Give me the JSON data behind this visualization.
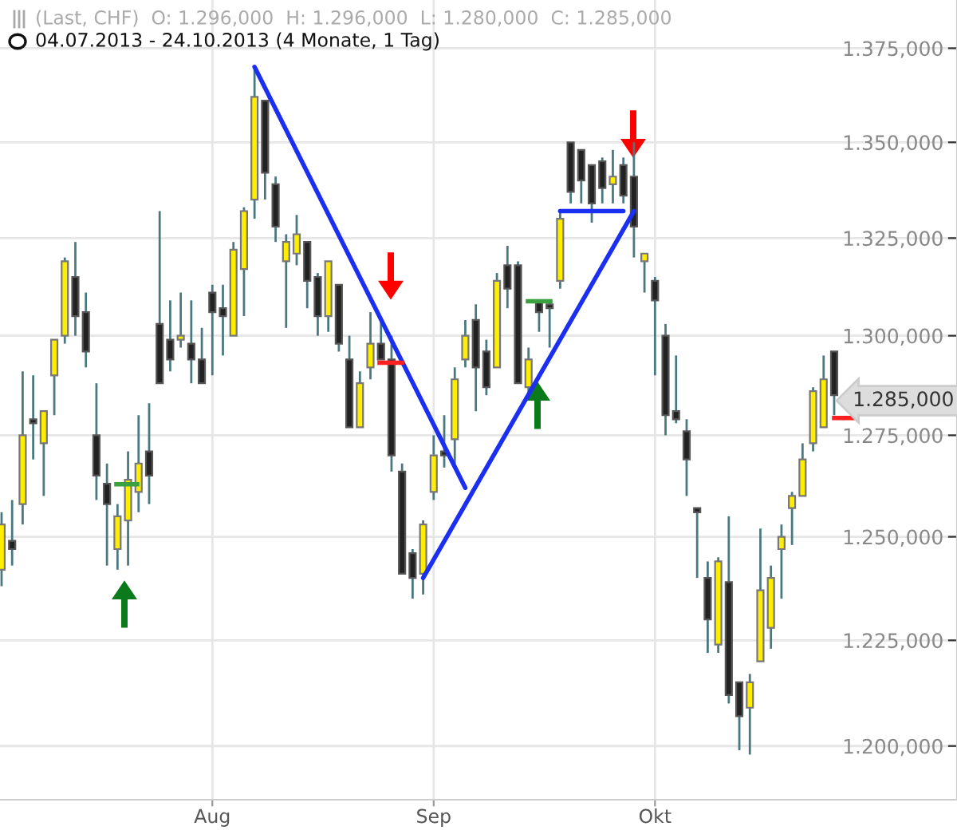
{
  "chart_data": {
    "type": "candlestick",
    "title": "(Last, CHF)  O: 1.296,000  H: 1.296,000  L: 1.280,000  C: 1.285,000",
    "subtitle": "04.07.2013 - 24.10.2013 (4 Monate, 1 Tag)",
    "categories": [
      null,
      null,
      null,
      null,
      null,
      null,
      null,
      null,
      null,
      null,
      null,
      null,
      null,
      null,
      null,
      null,
      null,
      null,
      null,
      null,
      "Aug",
      null,
      null,
      null,
      null,
      null,
      null,
      null,
      null,
      null,
      null,
      null,
      null,
      null,
      null,
      null,
      null,
      null,
      null,
      null,
      null,
      "Sep",
      null,
      null,
      null,
      null,
      null,
      null,
      null,
      null,
      null,
      null,
      null,
      null,
      null,
      null,
      null,
      null,
      null,
      null,
      null,
      null,
      "Okt",
      null,
      null,
      null,
      null,
      null,
      null,
      null,
      null,
      null,
      null,
      null,
      null,
      null,
      null,
      null,
      null,
      null
    ],
    "ohlc": [
      [
        1242,
        1256,
        1238,
        1253
      ],
      [
        1249,
        1259,
        1243,
        1247
      ],
      [
        1258,
        1291,
        1253,
        1275
      ],
      [
        1279,
        1290,
        1269,
        1278
      ],
      [
        1273,
        1281,
        1260,
        1281
      ],
      [
        1290,
        1299,
        1280,
        1299
      ],
      [
        1300,
        1320,
        1298,
        1319
      ],
      [
        1315,
        1324,
        1300,
        1305
      ],
      [
        1306,
        1311,
        1292,
        1296
      ],
      [
        1275,
        1288,
        1259,
        1265
      ],
      [
        1263,
        1268,
        1243,
        1258
      ],
      [
        1247,
        1258,
        1242,
        1255
      ],
      [
        1254,
        1271,
        1243,
        1264
      ],
      [
        1261,
        1280,
        1256,
        1268
      ],
      [
        1271,
        1283,
        1258,
        1265
      ],
      [
        1303,
        1332,
        1288,
        1288
      ],
      [
        1299,
        1309,
        1291,
        1294
      ],
      [
        1299,
        1311,
        1297,
        1300
      ],
      [
        1298,
        1309,
        1288,
        1294
      ],
      [
        1294,
        1302,
        1288,
        1288
      ],
      [
        1311,
        1313,
        1290,
        1306
      ],
      [
        1307,
        1313,
        1295,
        1305
      ],
      [
        1300,
        1324,
        1300,
        1322
      ],
      [
        1317,
        1333,
        1305,
        1332
      ],
      [
        1335,
        1370,
        1330,
        1362
      ],
      [
        1361,
        1361,
        1335,
        1342
      ],
      [
        1339,
        1341,
        1324,
        1328
      ],
      [
        1319,
        1326,
        1302,
        1324
      ],
      [
        1321,
        1331,
        1318,
        1326
      ],
      [
        1324,
        1324,
        1307,
        1314
      ],
      [
        1315,
        1316,
        1300,
        1305
      ],
      [
        1305,
        1319,
        1301,
        1319
      ],
      [
        1313,
        1313,
        1296,
        1298
      ],
      [
        1294,
        1300,
        1277,
        1277
      ],
      [
        1277,
        1291,
        1277,
        1288
      ],
      [
        1292,
        1306,
        1289,
        1298
      ],
      [
        1298,
        1304,
        1294,
        1294
      ],
      [
        1294,
        1300,
        1266,
        1270
      ],
      [
        1266,
        1268,
        1241,
        1241
      ],
      [
        1246,
        1247,
        1235,
        1240
      ],
      [
        1241,
        1254,
        1236,
        1253
      ],
      [
        1261,
        1275,
        1259,
        1270
      ],
      [
        1271,
        1280,
        1267,
        1270
      ],
      [
        1274,
        1292,
        1268,
        1289
      ],
      [
        1294,
        1304,
        1292,
        1300
      ],
      [
        1304,
        1308,
        1281,
        1292
      ],
      [
        1296,
        1299,
        1285,
        1287
      ],
      [
        1292,
        1316,
        1292,
        1314
      ],
      [
        1318,
        1323,
        1307,
        1312
      ],
      [
        1318,
        1319,
        1288,
        1288
      ],
      [
        1287,
        1297,
        1285,
        1294
      ],
      [
        1309,
        1309,
        1301,
        1306
      ],
      [
        1308,
        1309,
        1297,
        1307
      ],
      [
        1314,
        1332,
        1312,
        1330
      ],
      [
        1350,
        1350,
        1334,
        1337
      ],
      [
        1348,
        1348,
        1334,
        1340
      ],
      [
        1344,
        1344,
        1329,
        1334
      ],
      [
        1345,
        1346,
        1334,
        1338
      ],
      [
        1339,
        1348,
        1334,
        1341
      ],
      [
        1344,
        1346,
        1334,
        1336
      ],
      [
        1341,
        1350,
        1320,
        1328
      ],
      [
        1319,
        1321,
        1311,
        1321
      ],
      [
        1314,
        1315,
        1290,
        1309
      ],
      [
        1300,
        1303,
        1275,
        1280
      ],
      [
        1281,
        1295,
        1278,
        1279
      ],
      [
        1276,
        1279,
        1260,
        1269
      ],
      [
        1257,
        1257,
        1240,
        1256
      ],
      [
        1240,
        1244,
        1222,
        1230
      ],
      [
        1224,
        1245,
        1222,
        1244
      ],
      [
        1239,
        1255,
        1210,
        1212
      ],
      [
        1215,
        1215,
        1199,
        1207
      ],
      [
        1209,
        1217,
        1198,
        1215
      ],
      [
        1220,
        1252,
        1220,
        1237
      ],
      [
        1228,
        1243,
        1223,
        1240
      ],
      [
        1247,
        1253,
        1235,
        1250
      ],
      [
        1257,
        1261,
        1248,
        1260
      ],
      [
        1260,
        1273,
        1260,
        1269
      ],
      [
        1273,
        1287,
        1271,
        1286
      ],
      [
        1277,
        1295,
        1277,
        1289
      ],
      [
        1296,
        1296,
        1280,
        1285
      ]
    ],
    "series": [
      {
        "type": "line",
        "color": "#1a2ff0",
        "values": [
          null,
          null,
          null,
          null,
          null,
          null,
          null,
          null,
          null,
          null,
          null,
          null,
          null,
          null,
          null,
          null,
          null,
          null,
          null,
          null,
          null,
          null,
          null,
          null,
          1370,
          null,
          null,
          null,
          null,
          null,
          null,
          null,
          null,
          null,
          null,
          null,
          null,
          null,
          null,
          null,
          null,
          null,
          null,
          null,
          1262,
          null,
          null,
          null,
          null,
          null,
          null,
          null,
          null,
          null,
          null,
          null,
          null,
          null,
          null,
          null,
          null,
          null,
          null,
          null,
          null,
          null,
          null,
          null,
          null,
          null,
          null,
          null,
          null,
          null,
          null,
          null,
          null,
          null,
          null,
          null
        ]
      },
      {
        "type": "line",
        "color": "#1a2ff0",
        "values": [
          null,
          null,
          null,
          null,
          null,
          null,
          null,
          null,
          null,
          null,
          null,
          null,
          null,
          null,
          null,
          null,
          null,
          null,
          null,
          null,
          null,
          null,
          null,
          null,
          null,
          null,
          null,
          null,
          null,
          null,
          null,
          null,
          null,
          null,
          null,
          null,
          null,
          null,
          null,
          null,
          1240,
          null,
          null,
          null,
          null,
          null,
          null,
          null,
          null,
          null,
          null,
          null,
          null,
          null,
          null,
          null,
          null,
          null,
          null,
          null,
          1332,
          null,
          null,
          null,
          null,
          null,
          null,
          null,
          null,
          null,
          null,
          null,
          null,
          null,
          null,
          null,
          null,
          null,
          null,
          null
        ]
      },
      {
        "type": "line",
        "color": "#1a2ff0",
        "values": [
          null,
          null,
          null,
          null,
          null,
          null,
          null,
          null,
          null,
          null,
          null,
          null,
          null,
          null,
          null,
          null,
          null,
          null,
          null,
          null,
          null,
          null,
          null,
          null,
          null,
          null,
          null,
          null,
          null,
          null,
          null,
          null,
          null,
          null,
          null,
          null,
          null,
          null,
          null,
          null,
          null,
          null,
          null,
          null,
          null,
          null,
          null,
          null,
          null,
          null,
          null,
          null,
          null,
          1332,
          null,
          null,
          null,
          null,
          null,
          1332,
          null,
          null,
          null,
          null,
          null,
          null,
          null,
          null,
          null,
          null,
          null,
          null,
          null,
          null,
          null,
          null,
          null,
          null,
          null,
          null
        ]
      }
    ],
    "log": true,
    "ylim": [
      1187.5,
      1388
    ],
    "yticks": [
      {
        "value": 1200,
        "label": "1.200,000"
      },
      {
        "value": 1225,
        "label": "1.225,000"
      },
      {
        "value": 1250,
        "label": "1.250,000"
      },
      {
        "value": 1275,
        "label": "1.275,000"
      },
      {
        "value": 1300,
        "label": "1.300,000"
      },
      {
        "value": 1325,
        "label": "1.325,000"
      },
      {
        "value": 1350,
        "label": "1.350,000"
      },
      {
        "value": 1375,
        "label": "1.375,000"
      }
    ],
    "annotations": [
      "1.285,000"
    ],
    "grid": true
  }
}
